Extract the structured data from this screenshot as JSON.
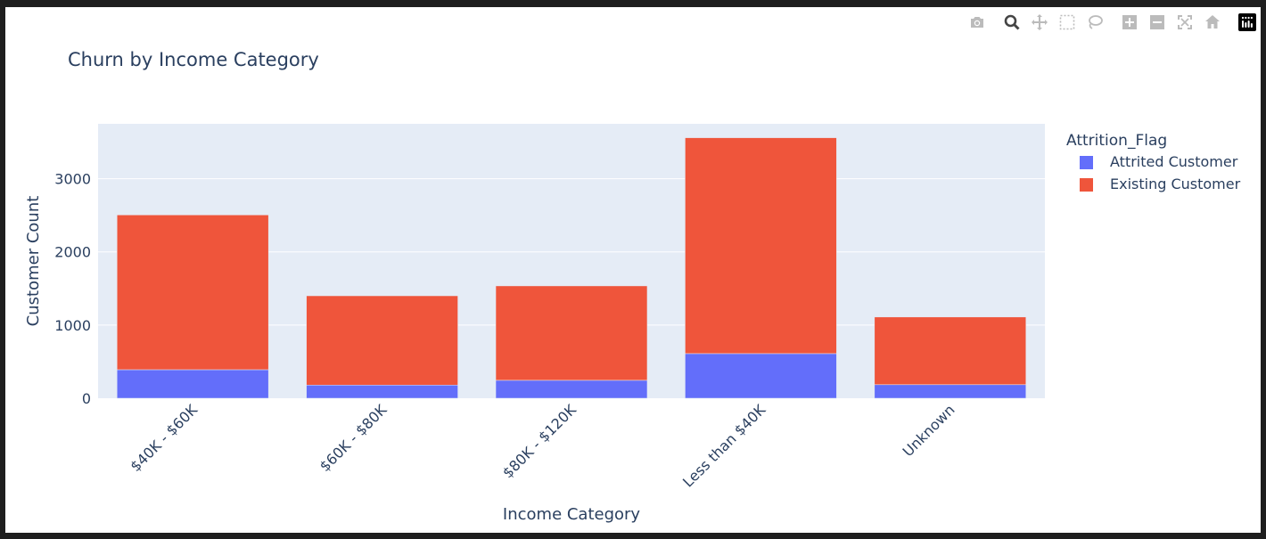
{
  "chart_data": {
    "type": "bar",
    "barmode": "stack",
    "title": "Churn by Income Category",
    "xlabel": "Income Category",
    "ylabel": "Customer Count",
    "categories": [
      "$40K - $60K",
      "$60K - $80K",
      "$80K - $120K",
      "Less than $40K",
      "Unknown"
    ],
    "series": [
      {
        "name": "Attrited Customer",
        "color": "#636efa",
        "values": [
          390,
          180,
          245,
          610,
          185
        ]
      },
      {
        "name": "Existing Customer",
        "color": "#ef553b",
        "values": [
          2115,
          1220,
          1290,
          2950,
          925
        ]
      }
    ],
    "ylim": [
      0,
      3750
    ],
    "yticks": [
      0,
      1000,
      2000,
      3000
    ],
    "ytick_labels": [
      "0",
      "1000",
      "2000",
      "3000"
    ],
    "legend": {
      "title": "Attrition_Flag",
      "placement": "right"
    },
    "grid": true,
    "plot_bgcolor": "#e5ecf6"
  },
  "modebar": {
    "buttons": [
      "camera-icon",
      "zoom-icon",
      "pan-icon",
      "box-select-icon",
      "lasso-icon",
      "zoom-in-icon",
      "zoom-out-icon",
      "autoscale-icon",
      "home-icon",
      "plotly-logo-icon"
    ]
  }
}
